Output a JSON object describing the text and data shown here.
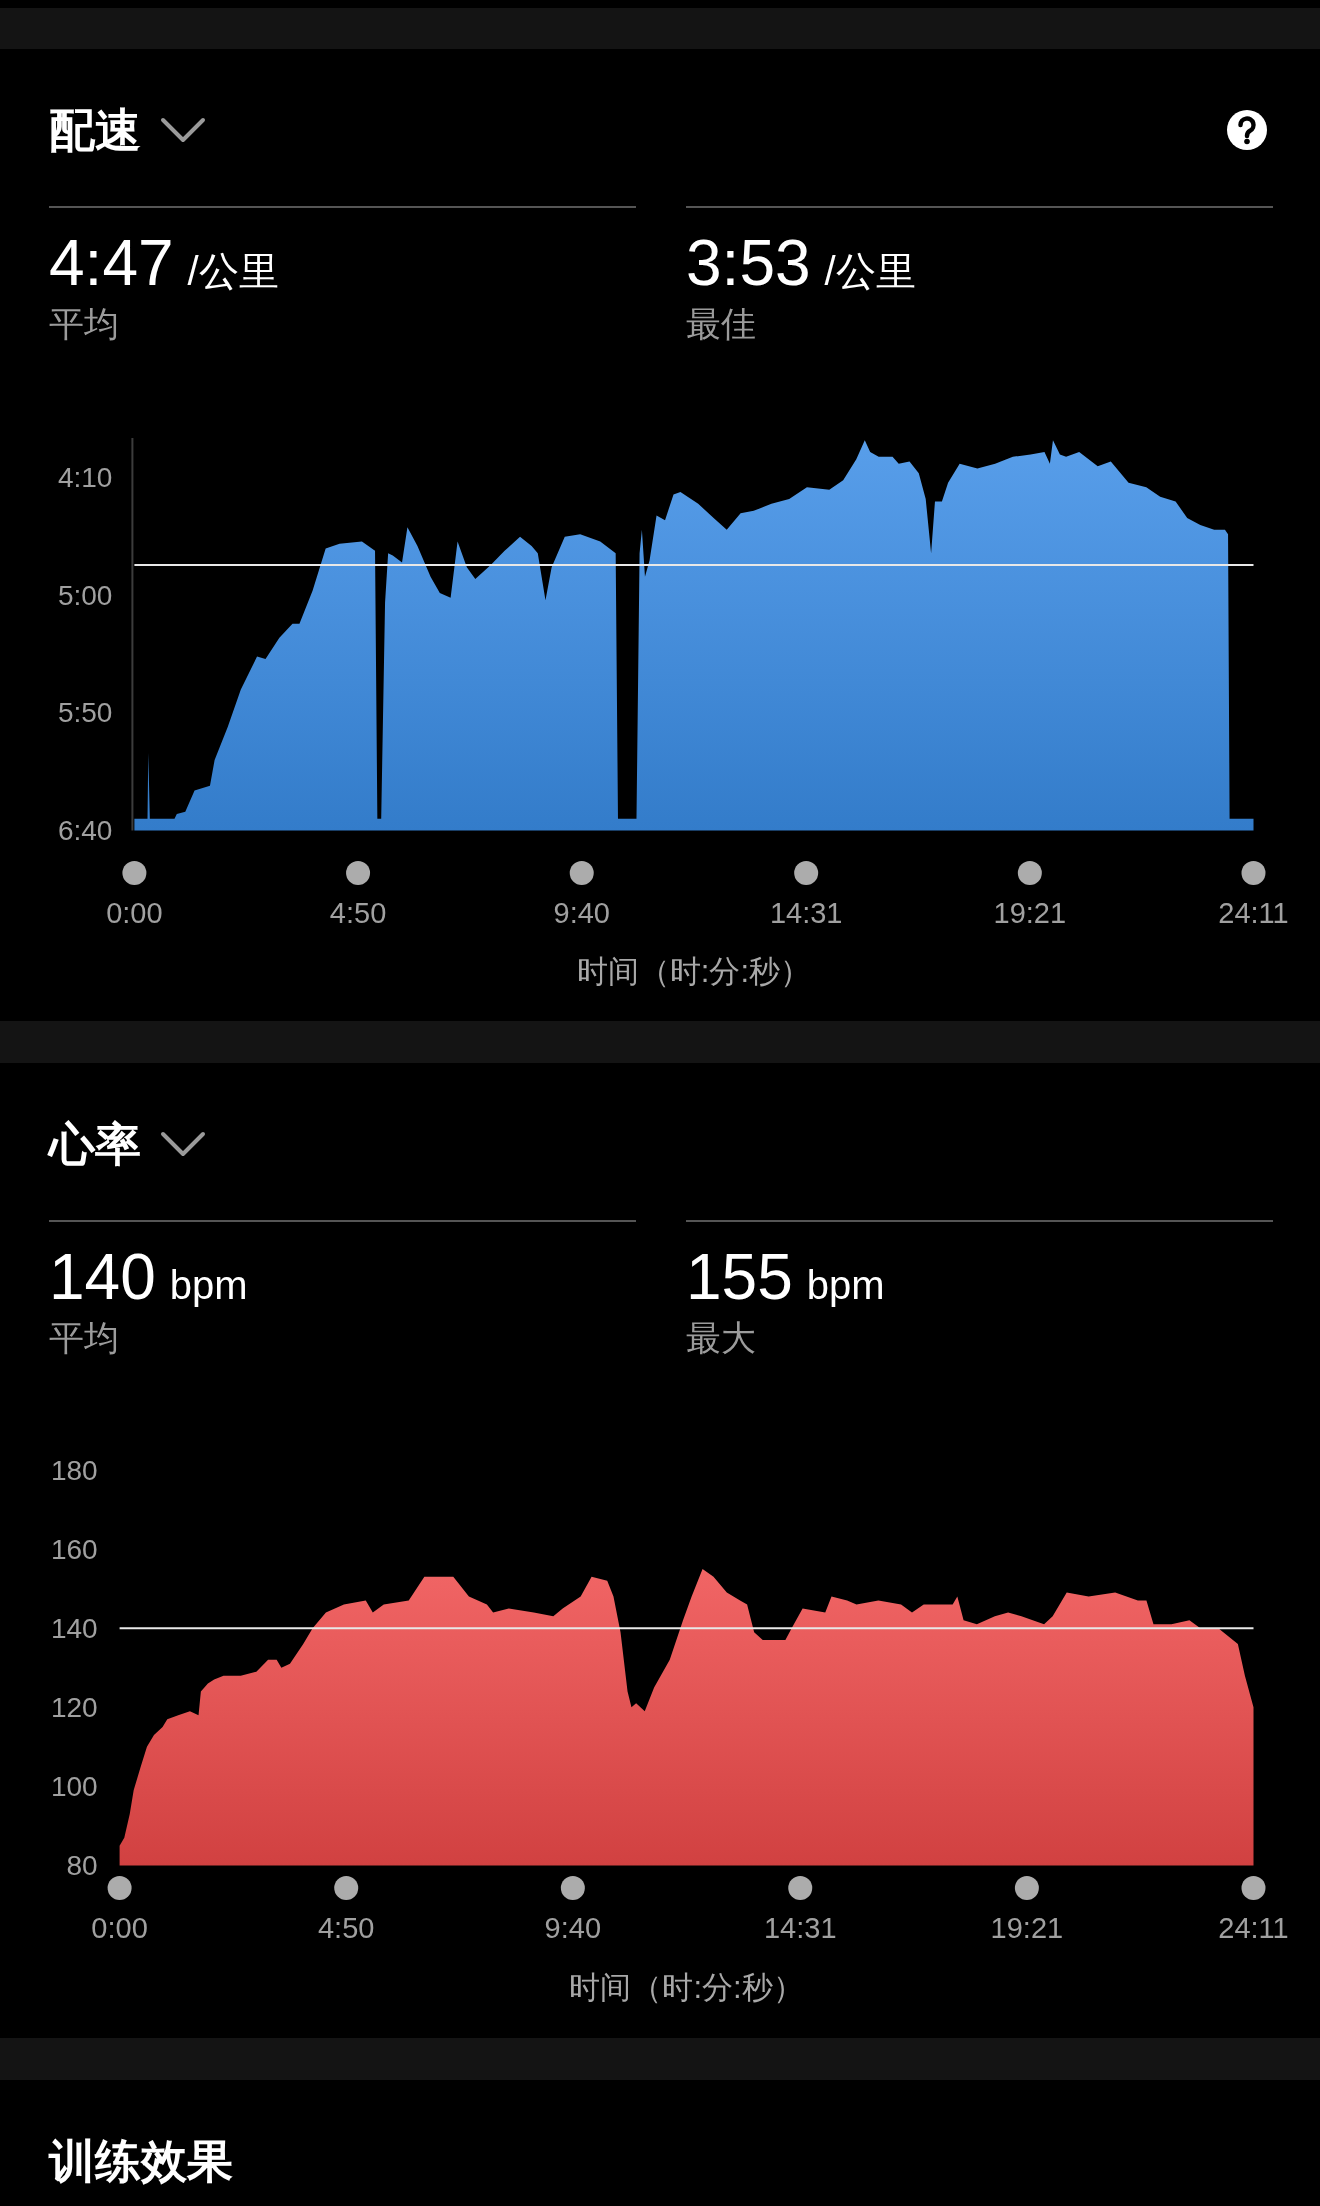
{
  "chart_data": [
    {
      "type": "area",
      "title": "配速",
      "annotations": [
        "4:47",
        "/公里",
        "平均",
        "3:53",
        "/公里",
        "最佳"
      ],
      "xlabel": "时间（时:分:秒）",
      "x": [
        0,
        0,
        17,
        18,
        20,
        52,
        55,
        66,
        78,
        98,
        104,
        121,
        138,
        159,
        170,
        188,
        205,
        214,
        231,
        248,
        266,
        295,
        312,
        315,
        320,
        325,
        329,
        335,
        347,
        354,
        367,
        384,
        396,
        410,
        419,
        431,
        442,
        462,
        480,
        500,
        515,
        523,
        533,
        541,
        558,
        578,
        604,
        624,
        627,
        651,
        655,
        658,
        662,
        668,
        677,
        688,
        699,
        708,
        731,
        751,
        768,
        786,
        803,
        826,
        849,
        872,
        901,
        919,
        936,
        947,
        954,
        965,
        983,
        991,
        1005,
        1017,
        1026,
        1033,
        1038,
        1047,
        1055,
        1070,
        1093,
        1116,
        1139,
        1162,
        1180,
        1187,
        1191,
        1200,
        1208,
        1225,
        1249,
        1266,
        1289,
        1312,
        1330,
        1350,
        1365,
        1382,
        1400,
        1414,
        1418,
        1420,
        1451,
        1451
      ],
      "series": [
        {
          "color": "#3a8de6",
          "values": [
            400,
            395,
            395,
            367,
            395,
            395,
            393,
            392,
            383,
            381,
            370,
            356,
            340,
            326,
            327,
            318,
            312,
            312,
            298,
            280,
            278,
            277,
            281,
            395,
            395,
            303,
            282,
            283,
            286,
            271,
            279,
            292,
            299,
            301,
            277,
            288,
            293,
            287,
            281,
            275,
            279,
            282,
            302,
            288,
            275,
            274,
            277,
            282,
            395,
            395,
            282,
            272,
            292,
            285,
            266,
            268,
            257,
            256,
            261,
            267,
            272,
            265,
            264,
            261,
            259,
            254,
            255,
            251,
            242,
            234,
            239,
            241,
            241,
            244,
            243,
            248,
            259,
            282,
            260,
            260,
            252,
            244,
            246,
            244,
            241,
            240,
            239,
            244,
            234,
            240,
            241,
            239,
            245,
            243,
            252,
            254,
            258,
            260,
            267,
            270,
            272,
            272,
            274,
            395,
            395,
            400
          ]
        }
      ],
      "xlim": [
        0,
        1451
      ],
      "xticks": [
        {
          "value": 0,
          "label": "0:00"
        },
        {
          "value": 290,
          "label": "4:50"
        },
        {
          "value": 580,
          "label": "9:40"
        },
        {
          "value": 871,
          "label": "14:31"
        },
        {
          "value": 1161,
          "label": "19:21"
        },
        {
          "value": 1451,
          "label": "24:11"
        }
      ],
      "ylim": [
        400,
        233
      ],
      "yticks": [
        {
          "value": 250,
          "label": "4:10"
        },
        {
          "value": 300,
          "label": "5:00"
        },
        {
          "value": 350,
          "label": "5:50"
        },
        {
          "value": 400,
          "label": "6:40"
        }
      ],
      "ref_lines": [
        {
          "axis": "y",
          "value": 287,
          "color": "#e8e8e8"
        }
      ]
    },
    {
      "type": "area",
      "title": "心率",
      "annotations": [
        "140",
        "bpm",
        "平均",
        "155",
        "bpm",
        "最大"
      ],
      "xlabel": "时间（时:分:秒）",
      "x": [
        0,
        6,
        13,
        18,
        27,
        35,
        44,
        55,
        61,
        75,
        90,
        101,
        104,
        113,
        121,
        133,
        155,
        175,
        190,
        201,
        207,
        218,
        235,
        247,
        264,
        287,
        315,
        324,
        338,
        370,
        390,
        427,
        447,
        470,
        478,
        498,
        530,
        555,
        567,
        590,
        604,
        624,
        632,
        641,
        650,
        655,
        661,
        672,
        684,
        704,
        721,
        732,
        746,
        760,
        777,
        794,
        803,
        812,
        823,
        852,
        860,
        874,
        903,
        911,
        931,
        943,
        971,
        1000,
        1014,
        1029,
        1066,
        1072,
        1080,
        1097,
        1120,
        1137,
        1154,
        1183,
        1194,
        1212,
        1240,
        1274,
        1303,
        1314,
        1323,
        1346,
        1369,
        1383,
        1406,
        1431,
        1440,
        1451
      ],
      "series": [
        {
          "color": "#ee4a4a",
          "values": [
            85,
            87,
            93,
            99,
            105,
            110,
            113,
            115,
            117,
            118,
            119,
            118,
            124,
            126,
            127,
            128,
            128,
            129,
            132,
            132,
            130,
            131,
            136,
            140,
            144,
            146,
            147,
            144,
            146,
            147,
            153,
            153,
            148,
            146,
            144,
            145,
            144,
            143,
            145,
            148,
            153,
            152,
            148,
            139,
            124,
            120,
            121,
            119,
            125,
            132,
            142,
            148,
            155,
            153,
            149,
            147,
            146,
            139,
            137,
            137,
            140,
            145,
            144,
            148,
            147,
            146,
            147,
            146,
            144,
            146,
            146,
            148,
            142,
            141,
            143,
            144,
            143,
            141,
            143,
            149,
            148,
            149,
            147,
            147,
            141,
            141,
            142,
            140,
            140,
            136,
            128,
            120
          ]
        }
      ],
      "xlim": [
        0,
        1451
      ],
      "xticks": [
        {
          "value": 0,
          "label": "0:00"
        },
        {
          "value": 290,
          "label": "4:50"
        },
        {
          "value": 580,
          "label": "9:40"
        },
        {
          "value": 871,
          "label": "14:31"
        },
        {
          "value": 1161,
          "label": "19:21"
        },
        {
          "value": 1451,
          "label": "24:11"
        }
      ],
      "ylim": [
        80,
        180
      ],
      "yticks": [
        80,
        100,
        120,
        140,
        160,
        180
      ],
      "ref_lines": [
        {
          "axis": "y",
          "value": 140,
          "color": "#e8e8e8"
        }
      ]
    },
    {
      "type": "other",
      "title": "训练效果"
    }
  ]
}
